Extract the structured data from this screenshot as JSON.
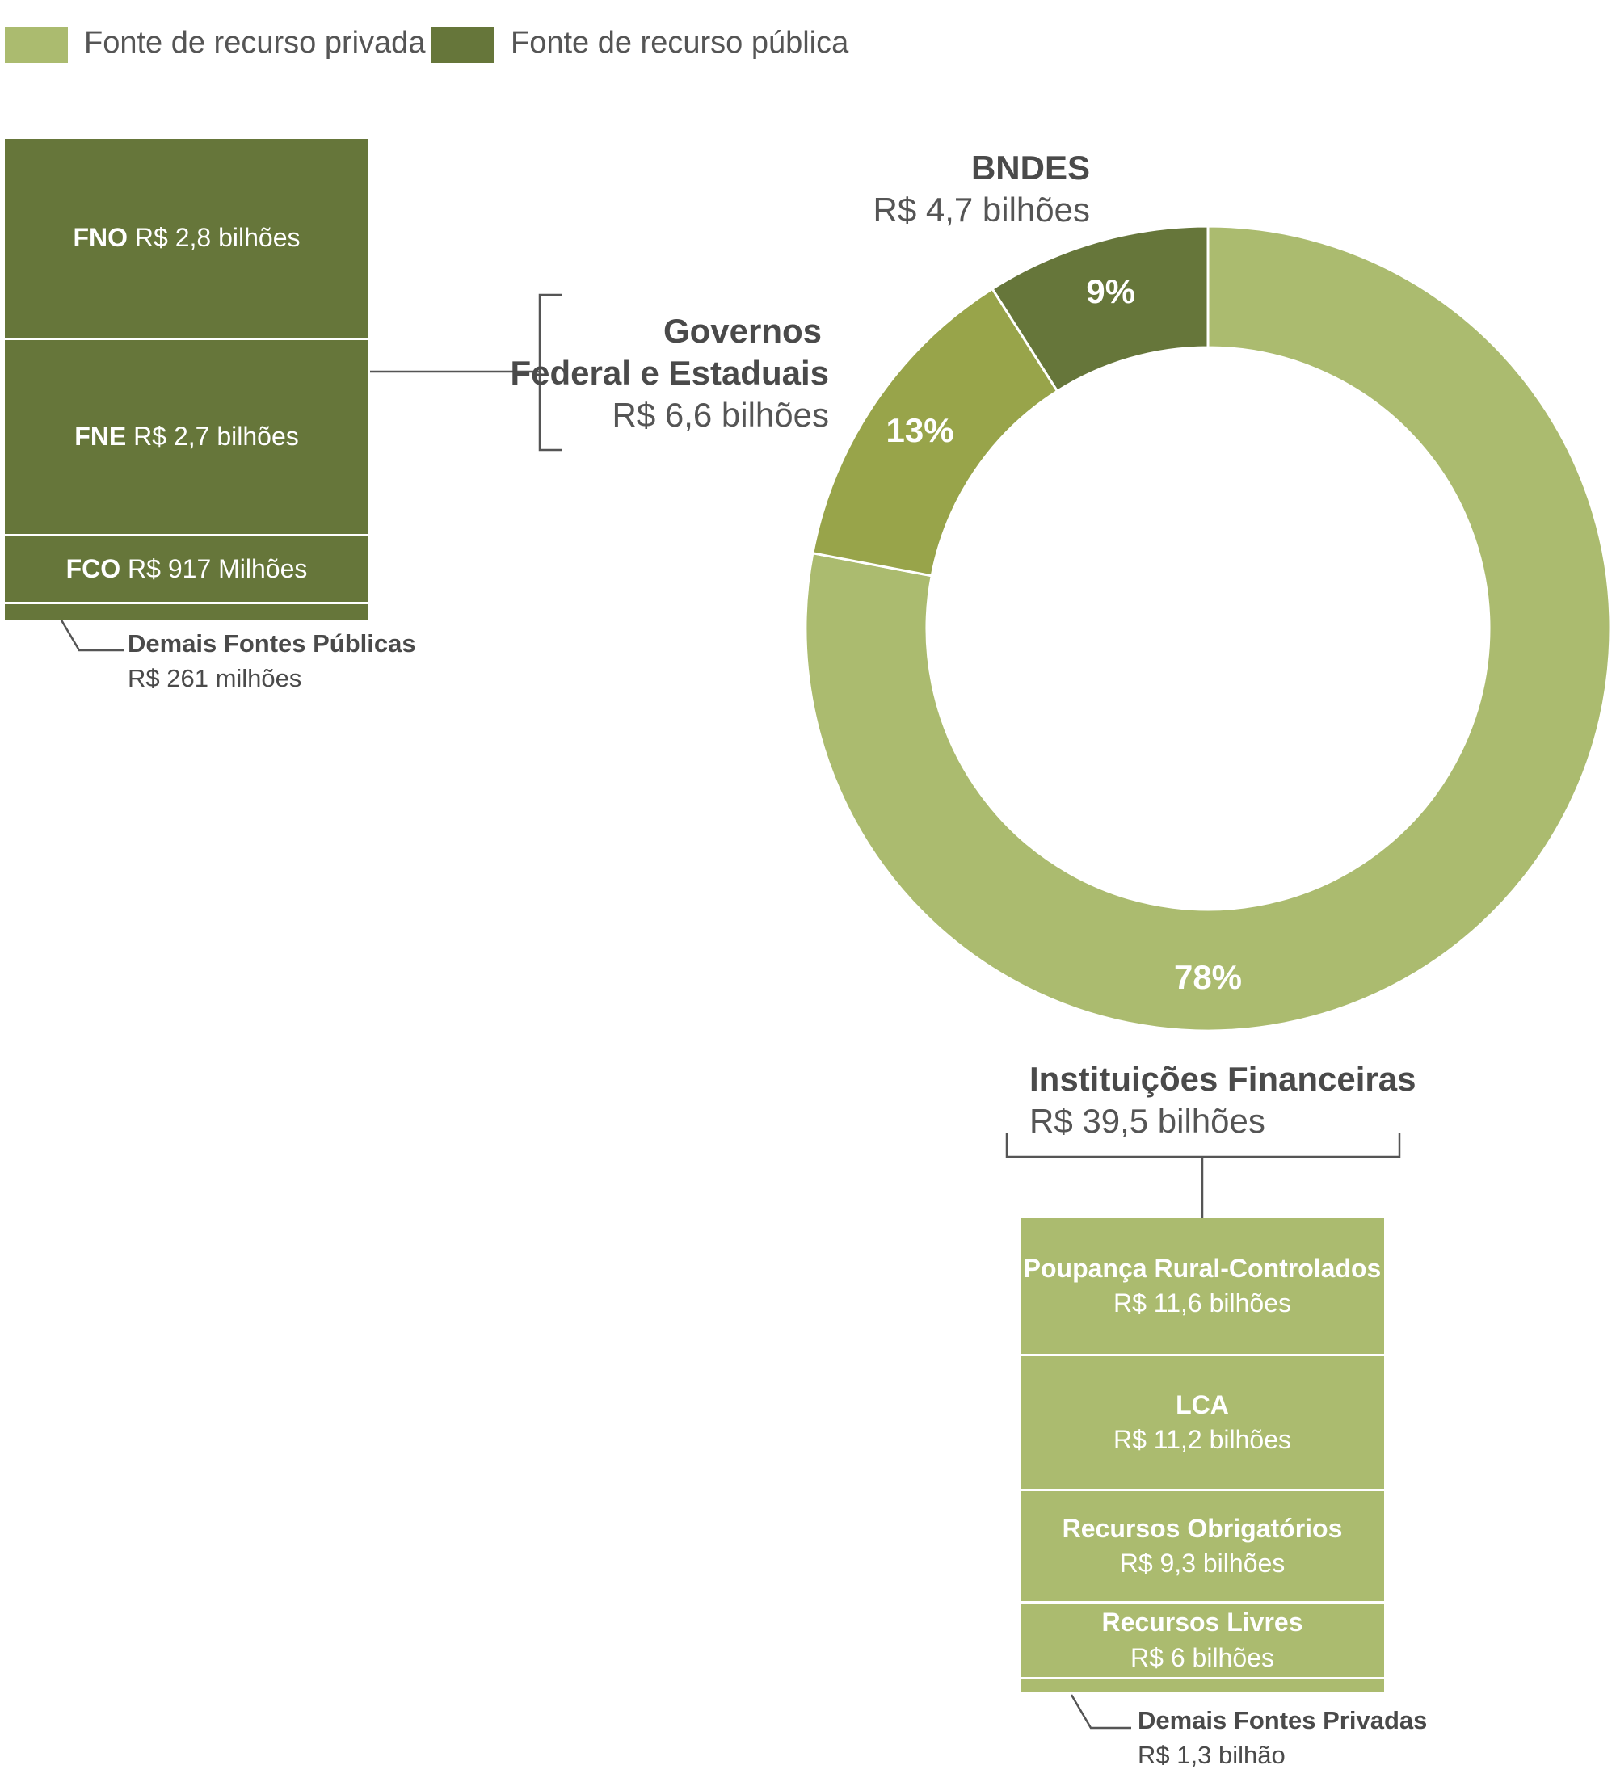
{
  "colors": {
    "private": "#abbb6f",
    "public": "#66763a",
    "mid": "#98a44a",
    "line": "#555555"
  },
  "legend": {
    "private_label": "Fonte de recurso privada",
    "public_label": "Fonte de recurso pública"
  },
  "chart_data": {
    "type": "pie",
    "variant": "donut",
    "slices": [
      {
        "name": "Instituições Financeiras",
        "amount": "R$ 39,5 bilhões",
        "value": 78,
        "label": "78%",
        "color": "#abbb6f"
      },
      {
        "name": "Governos Federal e Estaduais",
        "amount": "R$ 6,6 bilhões",
        "value": 13,
        "label": "13%",
        "color": "#98a44a"
      },
      {
        "name": "BNDES",
        "amount": "R$ 4,7 bilhões",
        "value": 9,
        "label": "9%",
        "color": "#66763a"
      }
    ]
  },
  "donut_labels": {
    "bndes": {
      "name": "BNDES",
      "amount": "R$ 4,7 bilhões"
    },
    "governos": {
      "name_line1": "Governos",
      "name_line2": "Federal e Estaduais",
      "amount": "R$ 6,6 bilhões"
    },
    "instituicoes": {
      "name": "Instituições Financeiras",
      "amount": "R$ 39,5 bilhões"
    }
  },
  "public_breakdown": [
    {
      "name": "FNO",
      "amount": "R$ 2,8 bilhões"
    },
    {
      "name": "FNE",
      "amount": "R$ 2,7 bilhões"
    },
    {
      "name": "FCO",
      "amount": "R$ 917 Milhões"
    }
  ],
  "public_other": {
    "name": "Demais Fontes Públicas",
    "amount": "R$ 261 milhões"
  },
  "private_breakdown": [
    {
      "name": "Poupança Rural-Controlados",
      "amount": "R$ 11,6 bilhões"
    },
    {
      "name": "LCA",
      "amount": "R$ 11,2 bilhões"
    },
    {
      "name": "Recursos Obrigatórios",
      "amount": "R$ 9,3 bilhões"
    },
    {
      "name": "Recursos Livres",
      "amount": "R$ 6 bilhões"
    }
  ],
  "private_other": {
    "name": "Demais Fontes Privadas",
    "amount": "R$ 1,3 bilhão"
  }
}
